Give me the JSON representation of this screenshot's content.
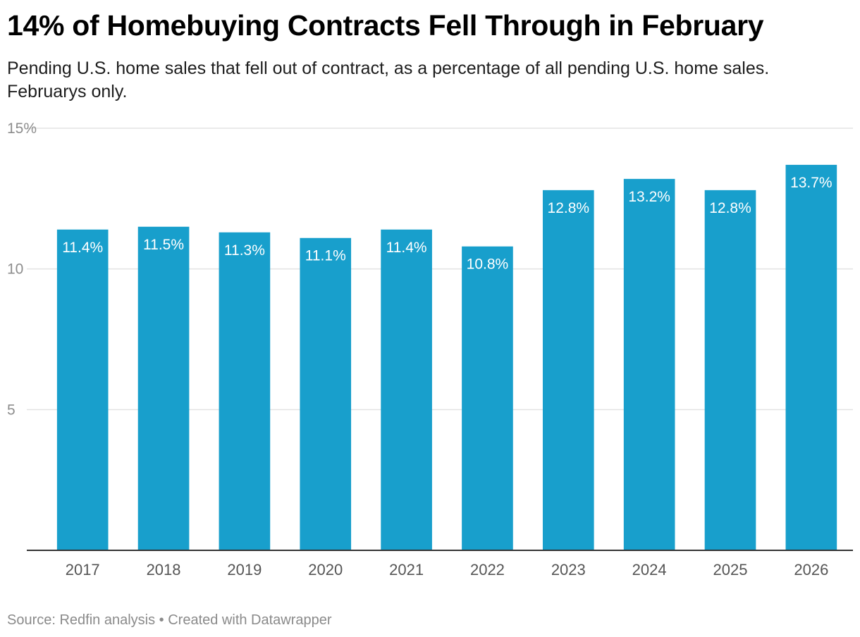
{
  "header": {
    "title": "14% of Homebuying Contracts Fell Through in February",
    "subtitle": "Pending U.S. home sales that fell out of contract, as a percentage of all pending U.S. home sales. Februarys only."
  },
  "footer": {
    "source": "Source: Redfin analysis • Created with Datawrapper"
  },
  "colors": {
    "bar": "#189fcc",
    "grid": "#e3e3e3",
    "baseline": "#333333"
  },
  "chart_data": {
    "type": "bar",
    "title": "14% of Homebuying Contracts Fell Through in February",
    "subtitle": "Pending U.S. home sales that fell out of contract, as a percentage of all pending U.S. home sales. Februarys only.",
    "xlabel": "",
    "ylabel": "",
    "categories": [
      "2017",
      "2018",
      "2019",
      "2020",
      "2021",
      "2022",
      "2023",
      "2024",
      "2025",
      "2026"
    ],
    "values": [
      11.4,
      11.5,
      11.3,
      11.1,
      11.4,
      10.8,
      12.8,
      13.2,
      12.8,
      13.7
    ],
    "value_labels": [
      "11.4%",
      "11.5%",
      "11.3%",
      "11.1%",
      "11.4%",
      "10.8%",
      "12.8%",
      "13.2%",
      "12.8%",
      "13.7%"
    ],
    "ylim": [
      0,
      15
    ],
    "y_ticks": [
      5,
      10,
      15
    ],
    "y_tick_labels": [
      "5",
      "10",
      "15%"
    ],
    "grid": true,
    "legend": "none"
  }
}
